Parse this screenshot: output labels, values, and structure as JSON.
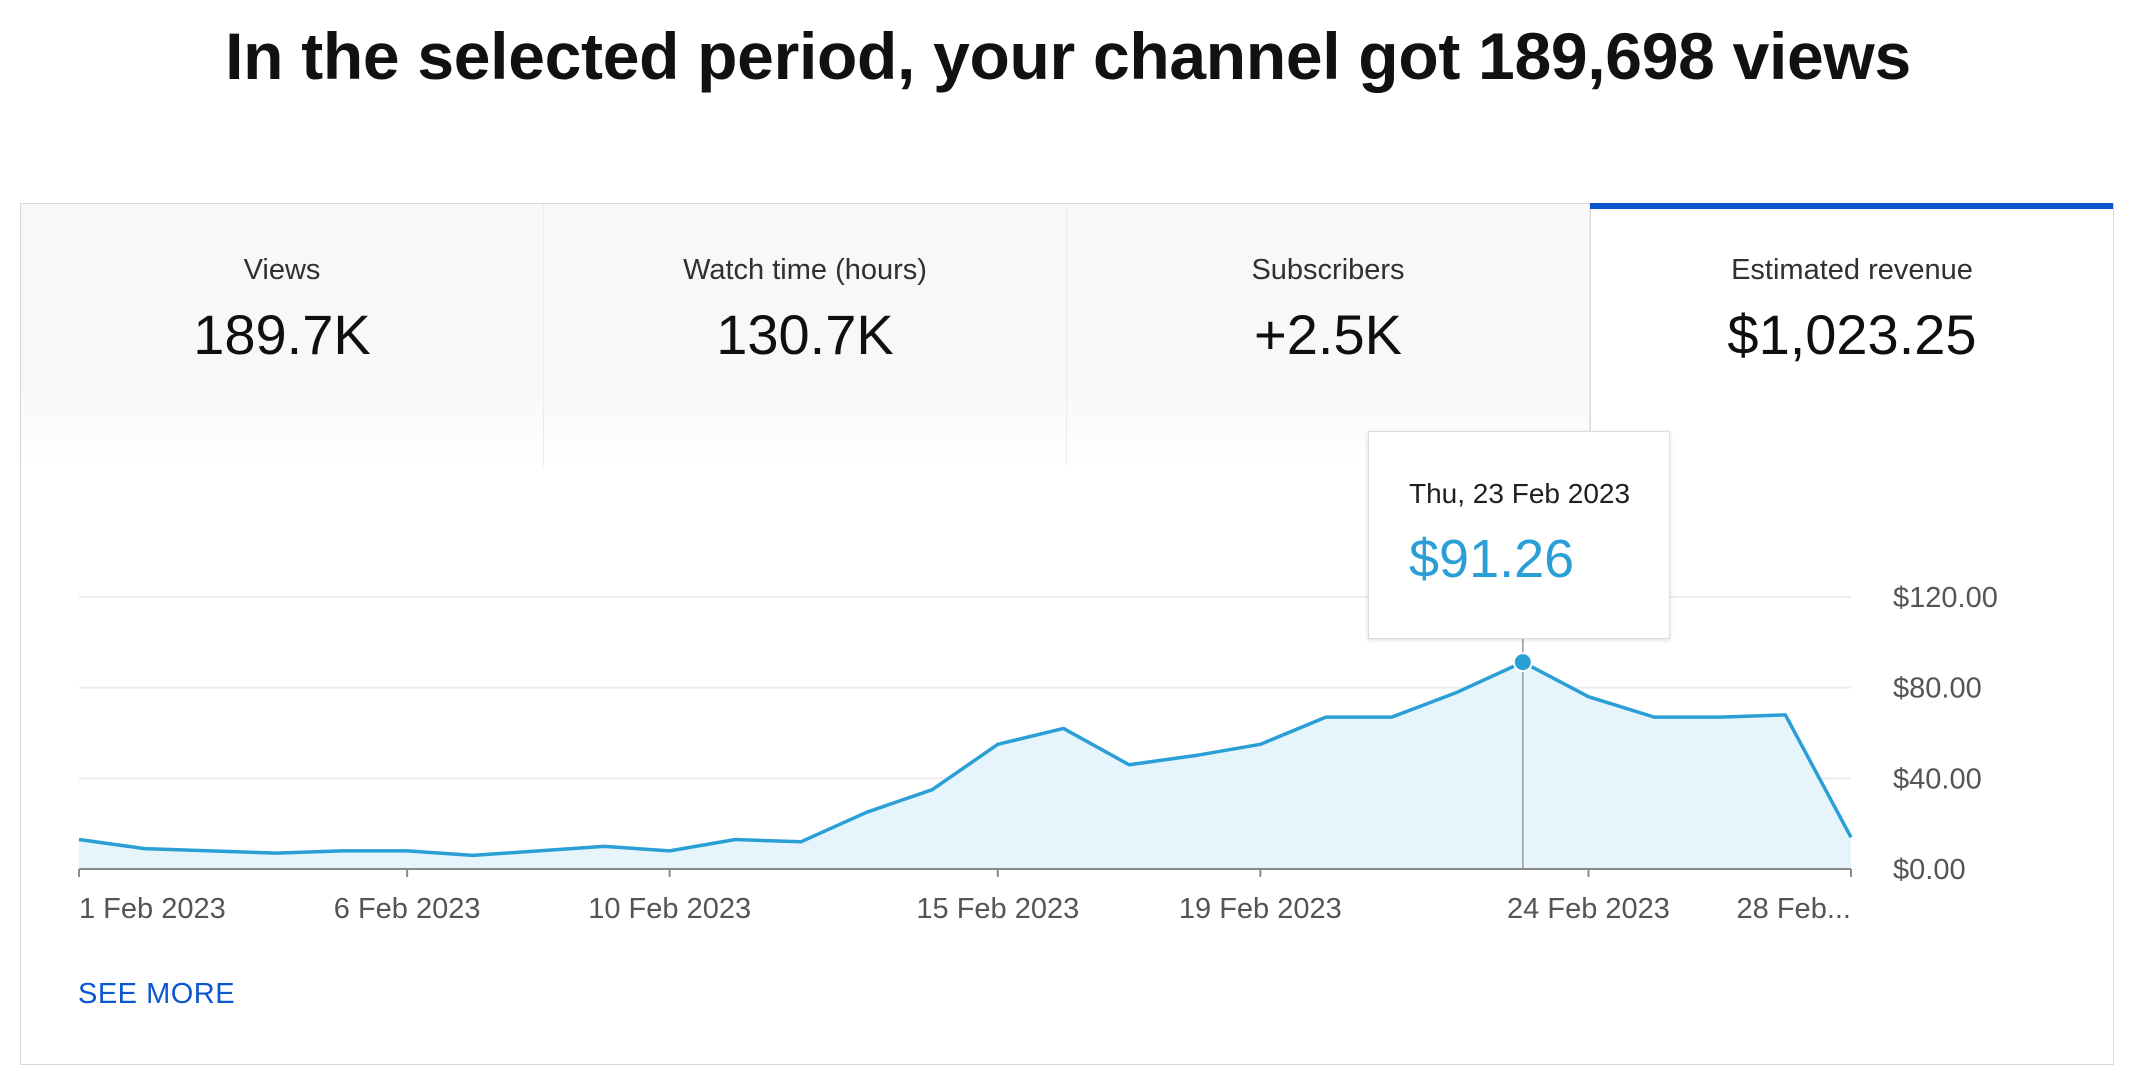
{
  "headline": "In the selected period, your channel got 189,698 views",
  "metrics": [
    {
      "label": "Views",
      "value": "189.7K"
    },
    {
      "label": "Watch time (hours)",
      "value": "130.7K"
    },
    {
      "label": "Subscribers",
      "value": "+2.5K"
    },
    {
      "label": "Estimated revenue",
      "value": "$1,023.25"
    }
  ],
  "selected_metric": "Estimated revenue",
  "tooltip": {
    "date": "Thu, 23 Feb 2023",
    "value": "$91.26"
  },
  "see_more": "SEE MORE",
  "colors": {
    "line": "#2a9fd6",
    "area": "#e3f4fc",
    "accent": "#0b57d0",
    "tooltip_value": "#2a9fd6"
  },
  "chart_data": {
    "type": "area",
    "title": "",
    "xlabel": "",
    "ylabel": "",
    "x": [
      "2023-02-01",
      "2023-02-02",
      "2023-02-03",
      "2023-02-04",
      "2023-02-05",
      "2023-02-06",
      "2023-02-07",
      "2023-02-08",
      "2023-02-09",
      "2023-02-10",
      "2023-02-11",
      "2023-02-12",
      "2023-02-13",
      "2023-02-14",
      "2023-02-15",
      "2023-02-16",
      "2023-02-17",
      "2023-02-18",
      "2023-02-19",
      "2023-02-20",
      "2023-02-21",
      "2023-02-22",
      "2023-02-23",
      "2023-02-24",
      "2023-02-25",
      "2023-02-26",
      "2023-02-27",
      "2023-02-28"
    ],
    "series": [
      {
        "values": [
          13,
          9,
          8,
          7,
          8,
          8,
          6,
          8,
          10,
          8,
          13,
          12,
          25,
          35,
          55,
          62,
          46,
          50,
          55,
          67,
          67,
          78,
          91.26,
          76,
          67,
          67,
          68,
          14
        ]
      }
    ],
    "x_tick_labels": [
      {
        "x": "2023-02-01",
        "label": "1 Feb 2023"
      },
      {
        "x": "2023-02-06",
        "label": "6 Feb 2023"
      },
      {
        "x": "2023-02-10",
        "label": "10 Feb 2023"
      },
      {
        "x": "2023-02-15",
        "label": "15 Feb 2023"
      },
      {
        "x": "2023-02-19",
        "label": "19 Feb 2023"
      },
      {
        "x": "2023-02-24",
        "label": "24 Feb 2023"
      },
      {
        "x": "2023-02-28",
        "label": "28 Feb..."
      }
    ],
    "y_ticks": [
      {
        "value": 0,
        "label": "$0.00"
      },
      {
        "value": 40,
        "label": "$40.00"
      },
      {
        "value": 80,
        "label": "$80.00"
      },
      {
        "value": 120,
        "label": "$120.00"
      }
    ],
    "ylim": [
      0,
      120
    ],
    "grid": true,
    "highlight": {
      "x": "2023-02-23",
      "y": 91.26
    }
  }
}
